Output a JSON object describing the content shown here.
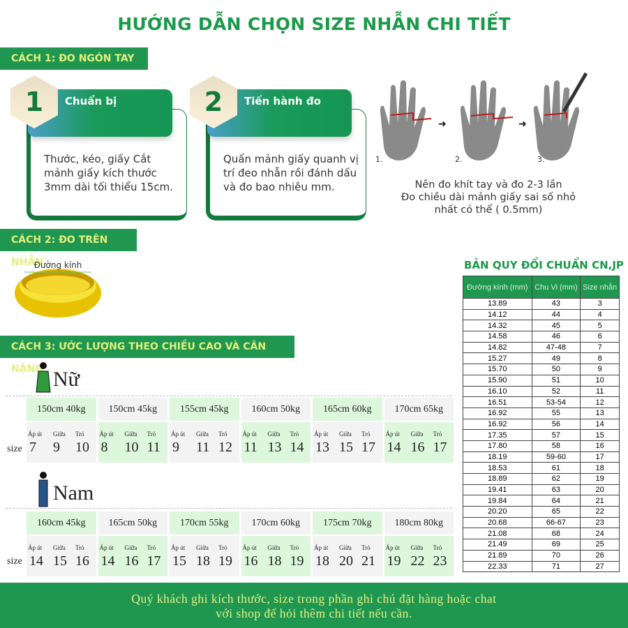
{
  "title": "HƯỚNG DẪN CHỌN SIZE NHẪN CHI TIẾT",
  "method1": {
    "label": "CÁCH 1: ĐO NGÓN TAY",
    "steps": [
      {
        "number": "1",
        "title": "Chuẩn bị",
        "text": "Thước, kéo, giấy Cắt mảnh giấy kích thước 3mm dài tối thiểu 15cm."
      },
      {
        "number": "2",
        "title": "Tiến hành đo",
        "text": "Quấn mảnh giấy quanh vị trí đeo nhẫn rồi đánh dấu và đo bao nhiêu mm."
      }
    ],
    "hand_labels": [
      "1.",
      "2.",
      "3."
    ],
    "note": [
      "Nên đo khít tay và đo 2-3 lần",
      "Đo chiều dài mảnh giấy sai số nhỏ",
      "nhất có thể ( 0.5mm)"
    ]
  },
  "method2": {
    "label": "CÁCH 2: ĐO TRÊN NHẪN",
    "ring_label": "Đường kính"
  },
  "method3": {
    "label": "CÁCH 3: ƯỚC LƯỢNG THEO CHIỀU CAO VÀ CÂN NẶNG",
    "size_label": "size",
    "finger_labels": [
      "Áp út",
      "Giữa",
      "Trỏ"
    ],
    "female": {
      "label": "Nữ",
      "groups": [
        {
          "hw": "150cm  40kg",
          "sizes": [
            "7",
            "9",
            "10"
          ]
        },
        {
          "hw": "150cm  45kg",
          "sizes": [
            "8",
            "10",
            "11"
          ]
        },
        {
          "hw": "155cm  45kg",
          "sizes": [
            "9",
            "11",
            "12"
          ]
        },
        {
          "hw": "160cm  50kg",
          "sizes": [
            "11",
            "13",
            "14"
          ]
        },
        {
          "hw": "165cm  60kg",
          "sizes": [
            "13",
            "15",
            "17"
          ]
        },
        {
          "hw": "170cm  65kg",
          "sizes": [
            "14",
            "16",
            "17"
          ]
        }
      ]
    },
    "male": {
      "label": "Nam",
      "groups": [
        {
          "hw": "160cm  45kg",
          "sizes": [
            "14",
            "15",
            "16"
          ]
        },
        {
          "hw": "165cm  50kg",
          "sizes": [
            "14",
            "16",
            "17"
          ]
        },
        {
          "hw": "170cm  55kg",
          "sizes": [
            "15",
            "18",
            "19"
          ]
        },
        {
          "hw": "170cm  60kg",
          "sizes": [
            "16",
            "18",
            "19"
          ]
        },
        {
          "hw": "175cm  70kg",
          "sizes": [
            "18",
            "20",
            "21"
          ]
        },
        {
          "hw": "180cm  80kg",
          "sizes": [
            "19",
            "22",
            "23"
          ]
        }
      ]
    }
  },
  "conversion": {
    "title": "BẢN QUY ĐỔI CHUẨN CN,JP",
    "headers": [
      "Đường kính (mm)",
      "Chu Vi (mm)",
      "Size nhẫn"
    ],
    "rows": [
      [
        "13.89",
        "43",
        "3"
      ],
      [
        "14.12",
        "44",
        "4"
      ],
      [
        "14.32",
        "45",
        "5"
      ],
      [
        "14.58",
        "46",
        "6"
      ],
      [
        "14.82",
        "47-48",
        "7"
      ],
      [
        "15.27",
        "49",
        "8"
      ],
      [
        "15.70",
        "50",
        "9"
      ],
      [
        "15.90",
        "51",
        "10"
      ],
      [
        "16.10",
        "52",
        "11"
      ],
      [
        "16.51",
        "53-54",
        "12"
      ],
      [
        "16.92",
        "55",
        "13"
      ],
      [
        "16.92",
        "56",
        "14"
      ],
      [
        "17.35",
        "57",
        "15"
      ],
      [
        "17.80",
        "58",
        "16"
      ],
      [
        "18.19",
        "59-60",
        "17"
      ],
      [
        "18.53",
        "61",
        "18"
      ],
      [
        "18.89",
        "62",
        "19"
      ],
      [
        "19.41",
        "63",
        "20"
      ],
      [
        "19.84",
        "64",
        "21"
      ],
      [
        "20.20",
        "65",
        "22"
      ],
      [
        "20.68",
        "66-67",
        "23"
      ],
      [
        "21.08",
        "68",
        "24"
      ],
      [
        "21.49",
        "69",
        "25"
      ],
      [
        "21.89",
        "70",
        "26"
      ],
      [
        "22.33",
        "71",
        "27"
      ]
    ]
  },
  "footer": [
    "Quý khách ghi kích thước, size trong phần ghi chú đặt hàng hoặc chat",
    "với shop để hỏi thêm chi tiết nếu cần."
  ],
  "colors": {
    "brand_green": "#1f9751",
    "title_green": "#1a9a4a",
    "label_yellow": "#e4ef7a",
    "cell_green": "#dcf7dc",
    "cell_gray": "#f3f3f3"
  }
}
